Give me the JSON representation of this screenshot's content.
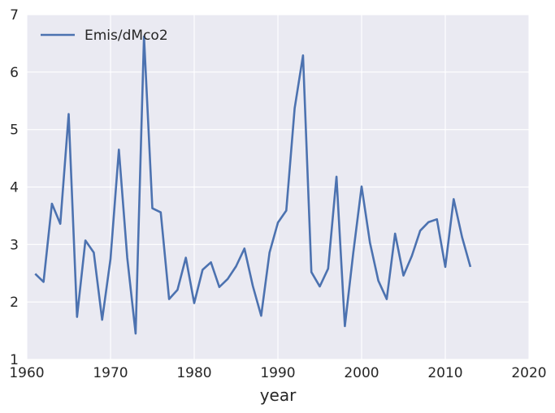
{
  "chart_data": {
    "type": "line",
    "title": "",
    "xlabel": "year",
    "ylabel": "",
    "xlim": [
      1960,
      2020
    ],
    "ylim": [
      1,
      7
    ],
    "xticks": [
      1960,
      1970,
      1980,
      1990,
      2000,
      2010,
      2020
    ],
    "yticks": [
      1,
      2,
      3,
      4,
      5,
      6,
      7
    ],
    "grid": true,
    "legend_position": "top-left",
    "colors": {
      "background": "#eaeaf2",
      "grid": "#ffffff",
      "series": "#4c72b0"
    },
    "series": [
      {
        "name": "Emis/dMco2",
        "x": [
          1961,
          1962,
          1963,
          1964,
          1965,
          1966,
          1967,
          1968,
          1969,
          1970,
          1971,
          1972,
          1973,
          1974,
          1975,
          1976,
          1977,
          1978,
          1979,
          1980,
          1981,
          1982,
          1983,
          1984,
          1985,
          1986,
          1987,
          1988,
          1989,
          1990,
          1991,
          1992,
          1993,
          1994,
          1995,
          1996,
          1997,
          1998,
          1999,
          2000,
          2001,
          2002,
          2003,
          2004,
          2005,
          2006,
          2007,
          2008,
          2009,
          2010,
          2011,
          2012,
          2013
        ],
        "values": [
          2.49,
          2.35,
          3.71,
          3.36,
          5.27,
          1.74,
          3.07,
          2.86,
          1.69,
          2.75,
          4.65,
          2.77,
          1.45,
          6.62,
          3.63,
          3.56,
          2.05,
          2.21,
          2.77,
          1.98,
          2.56,
          2.69,
          2.26,
          2.4,
          2.62,
          2.93,
          2.28,
          1.76,
          2.86,
          3.38,
          3.59,
          5.37,
          6.29,
          2.52,
          2.27,
          2.58,
          4.18,
          1.58,
          2.85,
          4.01,
          3.03,
          2.37,
          2.05,
          3.19,
          2.46,
          2.8,
          3.24,
          3.39,
          3.44,
          2.61,
          3.79,
          3.13,
          2.61
        ]
      }
    ]
  }
}
